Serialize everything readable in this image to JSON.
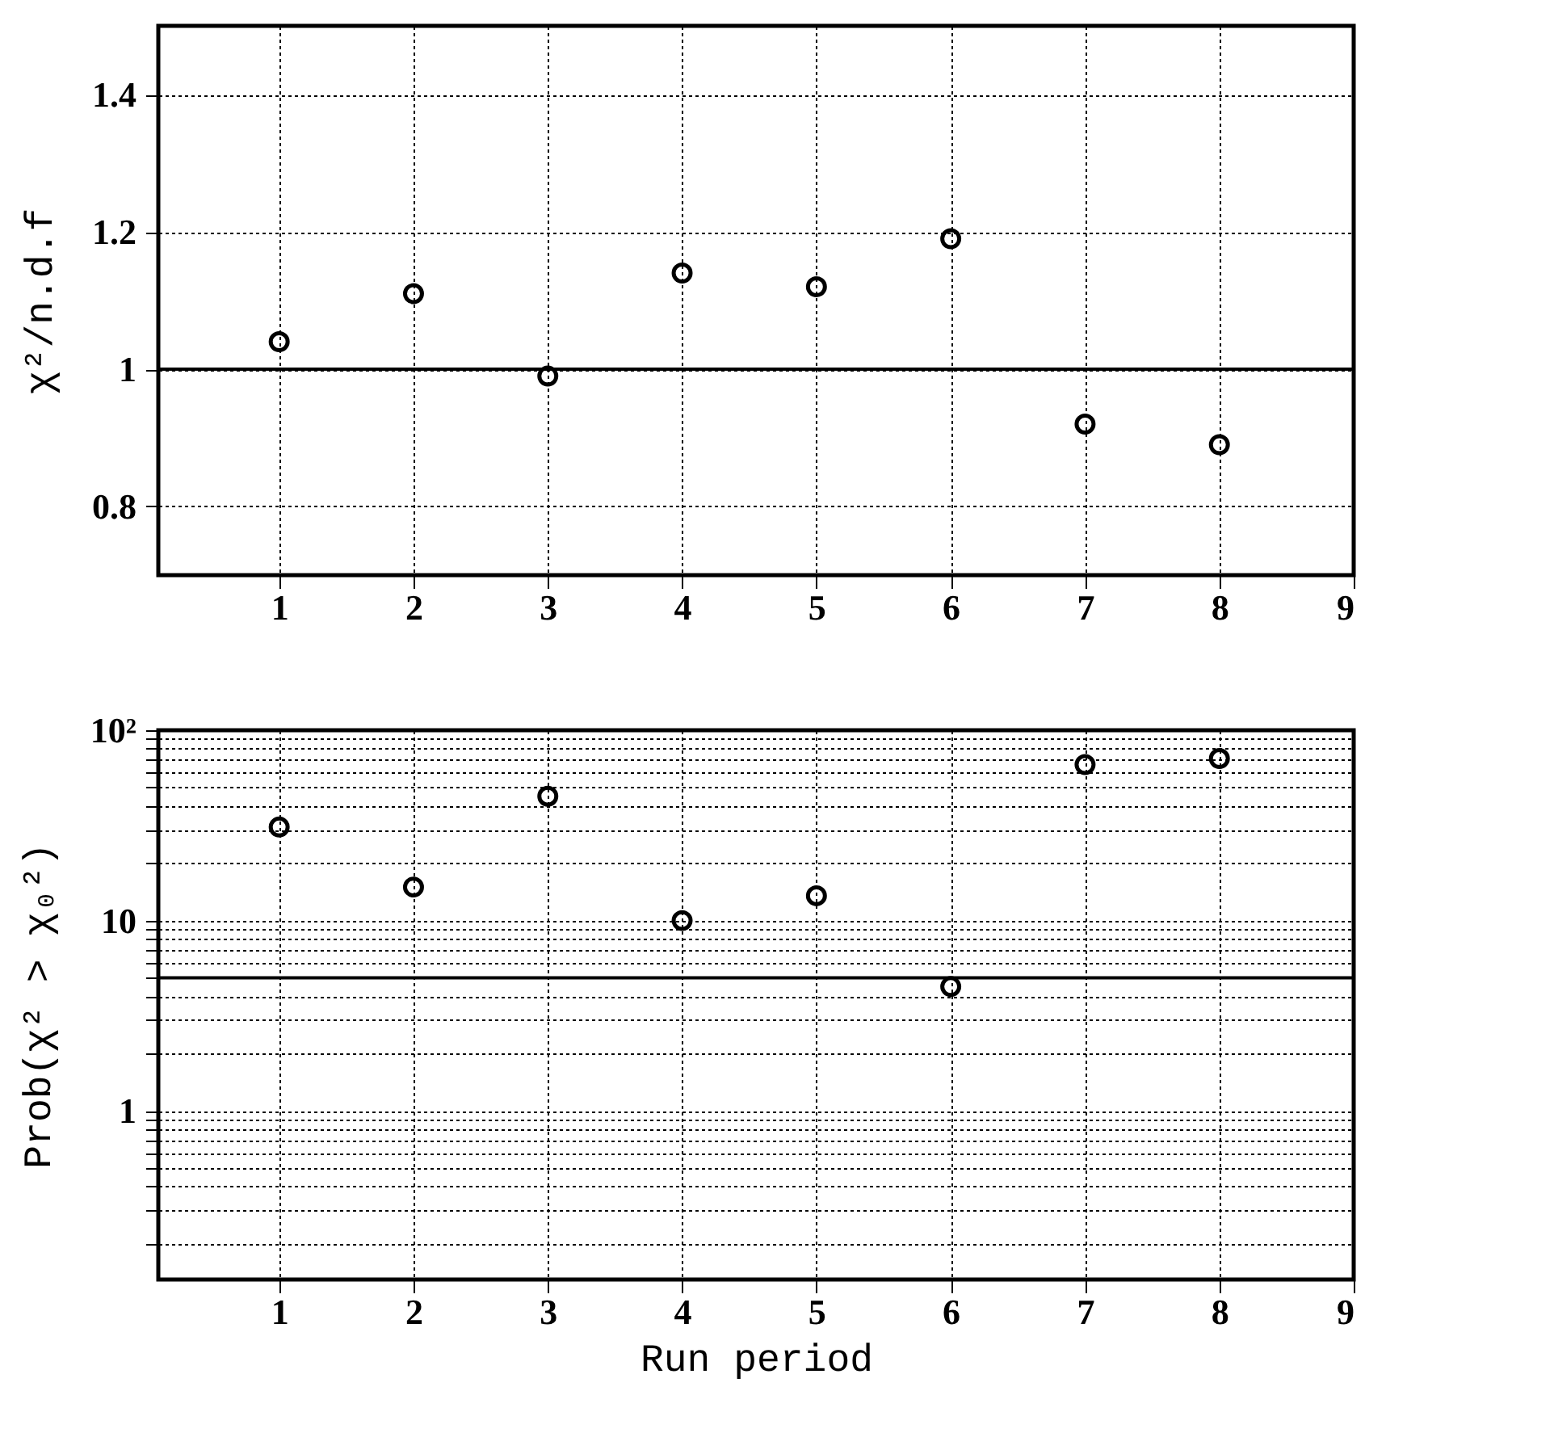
{
  "chart_data": [
    {
      "type": "scatter",
      "ylabel": "χ²/n.d.f",
      "x": [
        1,
        2,
        3,
        4,
        5,
        6,
        7,
        8
      ],
      "series": [
        {
          "color": "#000000",
          "values": [
            1.04,
            1.11,
            0.99,
            1.14,
            1.12,
            1.19,
            0.92,
            0.89
          ]
        }
      ],
      "xlim": [
        0.1,
        9
      ],
      "xticks": [
        1,
        2,
        3,
        4,
        5,
        6,
        7,
        8,
        9
      ],
      "ylim": [
        0.7,
        1.5
      ],
      "yticks": [
        0.8,
        1,
        1.2,
        1.4
      ],
      "ref_lines": [
        {
          "axis": "y",
          "value": 1,
          "color": "#000000",
          "line_style": "solid"
        }
      ],
      "grid": true,
      "marker": "circle"
    },
    {
      "type": "scatter",
      "xlabel": "Run period",
      "ylabel": "Prob(χ² > χ₀²)",
      "x": [
        1,
        2,
        3,
        4,
        5,
        6,
        7,
        8
      ],
      "series": [
        {
          "color": "#000000",
          "values": [
            31,
            15,
            45,
            10,
            13.5,
            4.5,
            66,
            71
          ]
        }
      ],
      "xlim": [
        0.1,
        9
      ],
      "xticks": [
        1,
        2,
        3,
        4,
        5,
        6,
        7,
        8,
        9
      ],
      "ylim": [
        0.13,
        100
      ],
      "log": true,
      "yticks": [
        {
          "value": 0.2,
          "label": null
        },
        {
          "value": 0.3,
          "label": null
        },
        {
          "value": 0.4,
          "label": null
        },
        {
          "value": 0.5,
          "label": null
        },
        {
          "value": 0.6,
          "label": null
        },
        {
          "value": 0.7,
          "label": null
        },
        {
          "value": 0.8,
          "label": null
        },
        {
          "value": 0.9,
          "label": null
        },
        1,
        {
          "value": 2,
          "label": null
        },
        {
          "value": 3,
          "label": null
        },
        {
          "value": 4,
          "label": null
        },
        {
          "value": 5,
          "label": null
        },
        {
          "value": 6,
          "label": null
        },
        {
          "value": 7,
          "label": null
        },
        {
          "value": 8,
          "label": null
        },
        {
          "value": 9,
          "label": null
        },
        10,
        {
          "value": 20,
          "label": null
        },
        {
          "value": 30,
          "label": null
        },
        {
          "value": 40,
          "label": null
        },
        {
          "value": 50,
          "label": null
        },
        {
          "value": 60,
          "label": null
        },
        {
          "value": 70,
          "label": null
        },
        {
          "value": 80,
          "label": null
        },
        {
          "value": 90,
          "label": null
        },
        {
          "value": 100,
          "label": "10²"
        }
      ],
      "ref_lines": [
        {
          "axis": "y",
          "value": 5,
          "color": "#000000",
          "line_style": "solid"
        }
      ],
      "grid": true,
      "marker": "circle"
    }
  ]
}
